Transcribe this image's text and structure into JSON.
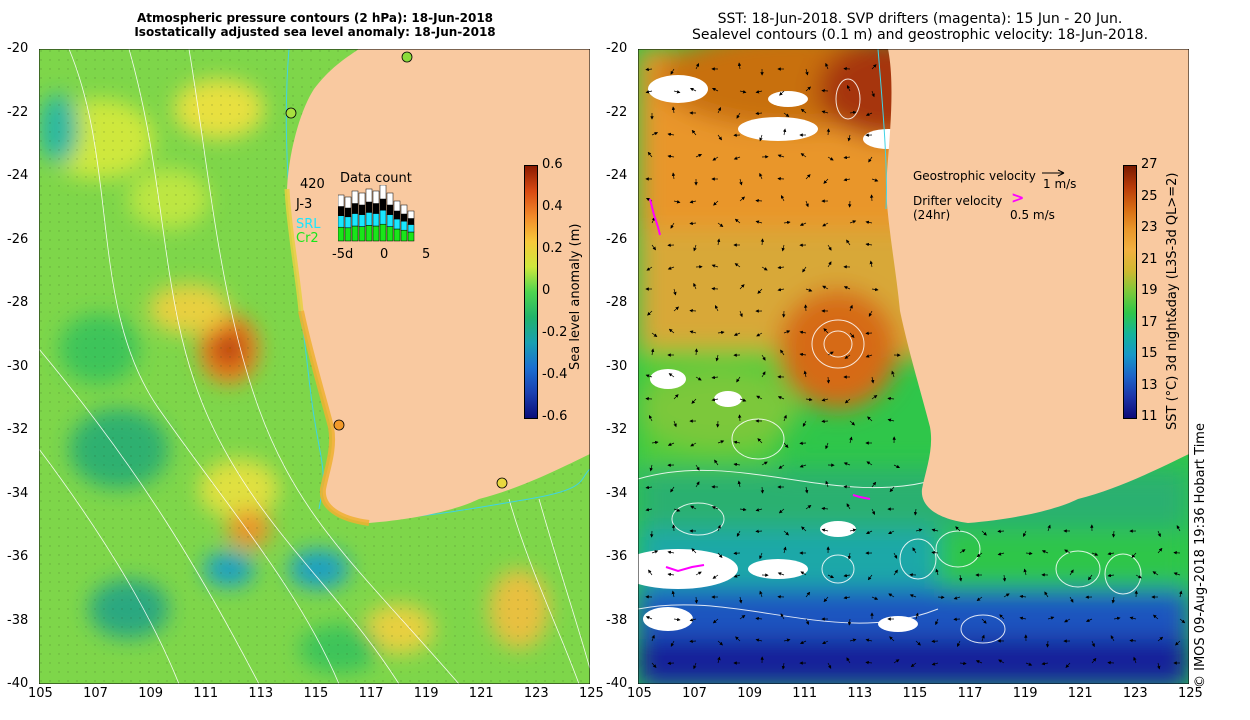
{
  "left_panel": {
    "title_line1": "Atmospheric pressure contours (2 hPa): 18-Jun-2018",
    "title_line2": "Isostatically adjusted sea level anomaly: 18-Jun-2018",
    "colorbar_label": "Sea level anomaly (m)",
    "colorbar_ticks": [
      "0.6",
      "0.4",
      "0.2",
      "0",
      "-0.2",
      "-0.4",
      "-0.6"
    ],
    "colorbar_colors": [
      "#8b1a00",
      "#d94a12",
      "#f28a2a",
      "#f7c83a",
      "#cfe83c",
      "#4fd44f",
      "#22b36a",
      "#1aa0b0",
      "#1c6fd0",
      "#1a3fb0",
      "#0a0e7a"
    ],
    "data_count": {
      "title": "Data count",
      "sats": [
        "420",
        "J-3",
        "SRL",
        "Cr2"
      ],
      "sat_colors": [
        "#ffffff",
        "#000000",
        "#19e6ff",
        "#19e619"
      ],
      "axis": [
        "-5d",
        "0",
        "5"
      ]
    },
    "markers": [
      {
        "color": "#8bdc3c"
      },
      {
        "color": "#a8e040"
      },
      {
        "color": "#f39a2a"
      },
      {
        "color": "#e8d840"
      }
    ]
  },
  "right_panel": {
    "title_line1": "SST: 18-Jun-2018. SVP drifters (magenta): 15 Jun - 20 Jun.",
    "title_line2": "Sealevel contours (0.1 m) and geostrophic velocity: 18-Jun-2018.",
    "colorbar_label": "SST (°C) 3d night&day (L3S-3d QL>=2)",
    "colorbar_ticks": [
      "27",
      "25",
      "23",
      "21",
      "19",
      "17",
      "15",
      "13",
      "11"
    ],
    "colorbar_colors": [
      "#7a1a00",
      "#b83a08",
      "#d66a12",
      "#e9962a",
      "#f2b040",
      "#cfb830",
      "#7cc83a",
      "#2fc64a",
      "#14b49a",
      "#1698c8",
      "#1d64c8",
      "#1c34a8",
      "#0c0a78"
    ],
    "geo_label": "Geostrophic velocity",
    "geo_speed": "1 m/s",
    "drift_label1": "Drifter velocity",
    "drift_label2": "(24hr)",
    "drift_speed": "0.5 m/s",
    "drift_color": "#ff00ff"
  },
  "axes": {
    "y_ticks": [
      "-20",
      "-22",
      "-24",
      "-26",
      "-28",
      "-30",
      "-32",
      "-34",
      "-36",
      "-38",
      "-40"
    ],
    "x_ticks": [
      "105",
      "107",
      "109",
      "111",
      "113",
      "115",
      "117",
      "119",
      "121",
      "123",
      "125"
    ]
  },
  "credit": "© IMOS 09-Aug-2018 19:36 Hobart Time",
  "colors": {
    "land": "#f9c9a0",
    "contour": "#ffffff",
    "coast_cyan": "#3fd3e6"
  }
}
